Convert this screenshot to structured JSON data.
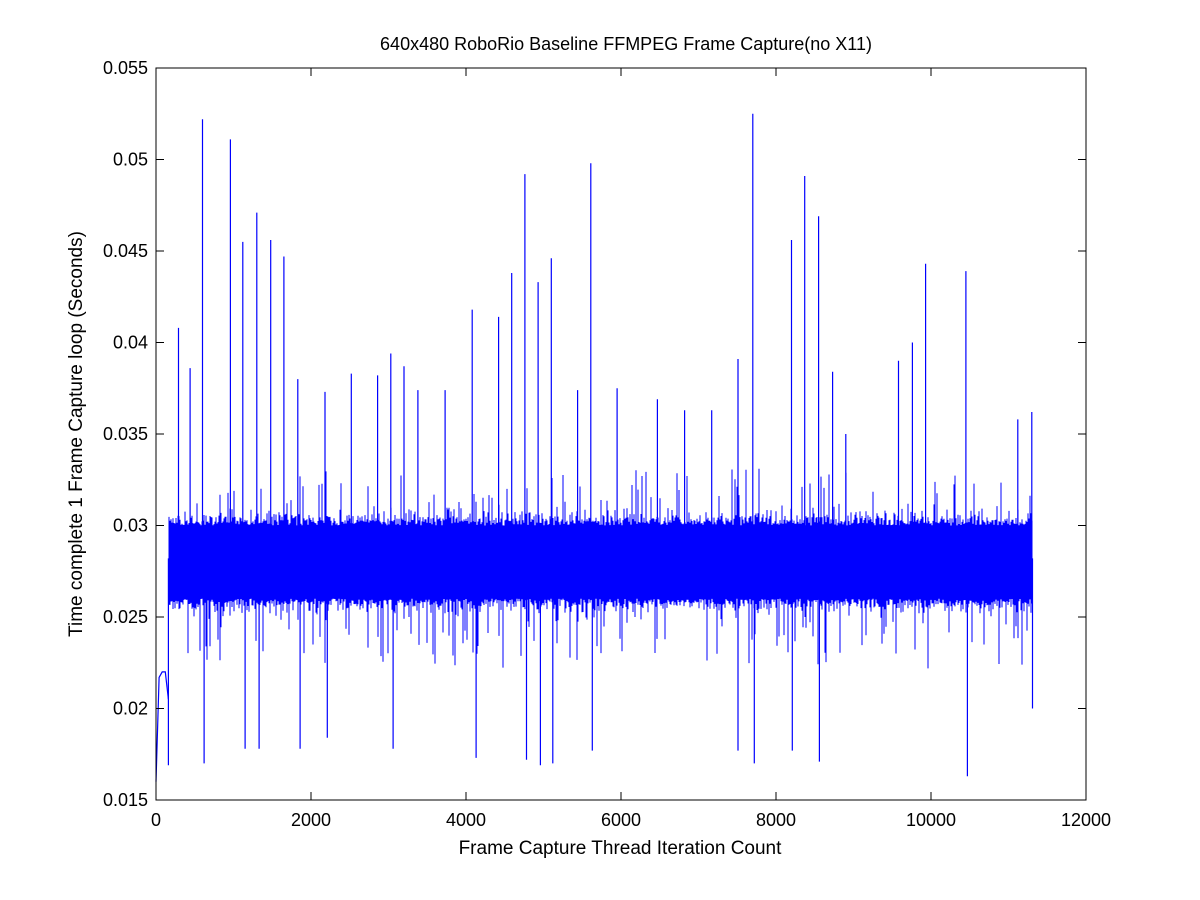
{
  "chart_data": {
    "type": "line",
    "title": "640x480 RoboRio Baseline FFMPEG Frame Capture(no X11)",
    "xlabel": "Frame Capture Thread Iteration Count",
    "ylabel": "Time complete 1 Frame Capture loop (Seconds)",
    "xlim": [
      0,
      12000
    ],
    "ylim": [
      0.015,
      0.055
    ],
    "xticks": [
      "0",
      "2000",
      "4000",
      "6000",
      "8000",
      "10000",
      "12000"
    ],
    "yticks": [
      "0.015",
      "0.02",
      "0.025",
      "0.03",
      "0.035",
      "0.04",
      "0.045",
      "0.05",
      "0.055"
    ],
    "grid": false,
    "legend": "none",
    "line_color": "#0000ff",
    "n_points": 11300,
    "series": [
      {
        "baseline_mean": 0.0282,
        "typical_band": [
          0.026,
          0.03
        ],
        "startup_segment": {
          "x": [
            0,
            40,
            80,
            120,
            160
          ],
          "y": [
            0.016,
            0.0217,
            0.022,
            0.022,
            0.0205
          ]
        },
        "upper_spikes": [
          {
            "x": 290,
            "y": 0.0408
          },
          {
            "x": 440,
            "y": 0.0386
          },
          {
            "x": 600,
            "y": 0.0522
          },
          {
            "x": 960,
            "y": 0.0511
          },
          {
            "x": 1120,
            "y": 0.0455
          },
          {
            "x": 1300,
            "y": 0.0471
          },
          {
            "x": 1480,
            "y": 0.0456
          },
          {
            "x": 1650,
            "y": 0.0447
          },
          {
            "x": 1830,
            "y": 0.038
          },
          {
            "x": 2180,
            "y": 0.0373
          },
          {
            "x": 2520,
            "y": 0.0383
          },
          {
            "x": 2860,
            "y": 0.0382
          },
          {
            "x": 3030,
            "y": 0.0394
          },
          {
            "x": 3200,
            "y": 0.0387
          },
          {
            "x": 3380,
            "y": 0.0374
          },
          {
            "x": 3730,
            "y": 0.0374
          },
          {
            "x": 4080,
            "y": 0.0418
          },
          {
            "x": 4420,
            "y": 0.0414
          },
          {
            "x": 4590,
            "y": 0.0438
          },
          {
            "x": 4760,
            "y": 0.0492
          },
          {
            "x": 4930,
            "y": 0.0433
          },
          {
            "x": 5100,
            "y": 0.0446
          },
          {
            "x": 5440,
            "y": 0.0374
          },
          {
            "x": 5610,
            "y": 0.0498
          },
          {
            "x": 5950,
            "y": 0.0375
          },
          {
            "x": 6470,
            "y": 0.0369
          },
          {
            "x": 6820,
            "y": 0.0363
          },
          {
            "x": 7170,
            "y": 0.0363
          },
          {
            "x": 7510,
            "y": 0.0391
          },
          {
            "x": 7700,
            "y": 0.0525
          },
          {
            "x": 8200,
            "y": 0.0456
          },
          {
            "x": 8370,
            "y": 0.0491
          },
          {
            "x": 8550,
            "y": 0.0469
          },
          {
            "x": 8730,
            "y": 0.0384
          },
          {
            "x": 8900,
            "y": 0.035
          },
          {
            "x": 9580,
            "y": 0.039
          },
          {
            "x": 9760,
            "y": 0.04
          },
          {
            "x": 9930,
            "y": 0.0443
          },
          {
            "x": 10450,
            "y": 0.0439
          },
          {
            "x": 11120,
            "y": 0.0358
          },
          {
            "x": 11300,
            "y": 0.0362
          }
        ],
        "lower_spikes": [
          {
            "x": 160,
            "y": 0.0169
          },
          {
            "x": 620,
            "y": 0.017
          },
          {
            "x": 1150,
            "y": 0.0178
          },
          {
            "x": 1330,
            "y": 0.0178
          },
          {
            "x": 1860,
            "y": 0.0178
          },
          {
            "x": 2210,
            "y": 0.0184
          },
          {
            "x": 3060,
            "y": 0.0178
          },
          {
            "x": 4130,
            "y": 0.0173
          },
          {
            "x": 4780,
            "y": 0.0172
          },
          {
            "x": 4960,
            "y": 0.0169
          },
          {
            "x": 5120,
            "y": 0.017
          },
          {
            "x": 5630,
            "y": 0.0177
          },
          {
            "x": 7510,
            "y": 0.0177
          },
          {
            "x": 7720,
            "y": 0.017
          },
          {
            "x": 8210,
            "y": 0.0177
          },
          {
            "x": 8560,
            "y": 0.0171
          },
          {
            "x": 10470,
            "y": 0.0163
          },
          {
            "x": 11310,
            "y": 0.02
          }
        ]
      }
    ]
  }
}
